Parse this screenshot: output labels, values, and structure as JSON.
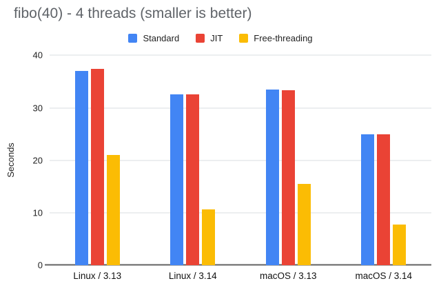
{
  "chart_data": {
    "type": "bar",
    "title": "fibo(40) - 4 threads (smaller is better)",
    "ylabel": "Seconds",
    "xlabel": "",
    "ylim": [
      0,
      40
    ],
    "yticks": [
      0,
      10,
      20,
      30,
      40
    ],
    "grid": true,
    "legend_position": "top",
    "background_color": "#ffffff",
    "title_color": "#5f6368",
    "categories": [
      "Linux / 3.13",
      "Linux / 3.14",
      "macOS / 3.13",
      "macOS / 3.14"
    ],
    "series": [
      {
        "name": "Standard",
        "color": "#4285f4",
        "values": [
          37.0,
          32.5,
          33.5,
          25.0
        ]
      },
      {
        "name": "JIT",
        "color": "#ea4335",
        "values": [
          37.4,
          32.5,
          33.4,
          24.9
        ]
      },
      {
        "name": "Free-threading",
        "color": "#fbbc04",
        "values": [
          21.0,
          10.7,
          15.5,
          7.8
        ]
      }
    ]
  }
}
